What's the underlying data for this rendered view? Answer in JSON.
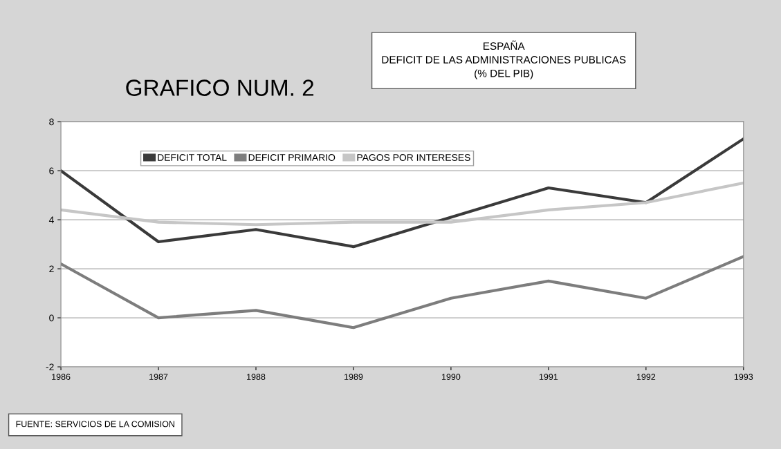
{
  "chart_data": {
    "type": "line",
    "title": "GRAFICO NUM. 2",
    "subtitle": "ESPAÑA\nDEFICIT DE LAS ADMINISTRACIONES PUBLICAS\n(% DEL PIB)",
    "annotations": [
      "FUENTE: SERVICIOS DE LA COMISION"
    ],
    "categories": [
      "1986",
      "1987",
      "1988",
      "1989",
      "1990",
      "1991",
      "1992",
      "1993"
    ],
    "series": [
      {
        "name": "DEFICIT TOTAL",
        "color": "#3a3a3a",
        "values": [
          6.0,
          3.1,
          3.6,
          2.9,
          4.1,
          5.3,
          4.7,
          7.3
        ]
      },
      {
        "name": "DEFICIT PRIMARIO",
        "color": "#7d7d7d",
        "values": [
          2.2,
          0.0,
          0.3,
          -0.4,
          0.8,
          1.5,
          0.8,
          2.5
        ]
      },
      {
        "name": "PAGOS POR INTERESES",
        "color": "#c6c6c6",
        "values": [
          4.4,
          3.9,
          3.8,
          3.9,
          3.9,
          4.4,
          4.7,
          5.5
        ]
      }
    ],
    "ylim": [
      -2,
      8
    ],
    "yticks": [
      -2,
      0,
      2,
      4,
      6,
      8
    ],
    "grid": "y",
    "legend": "top left",
    "marker": "none",
    "line_style": "solid"
  }
}
